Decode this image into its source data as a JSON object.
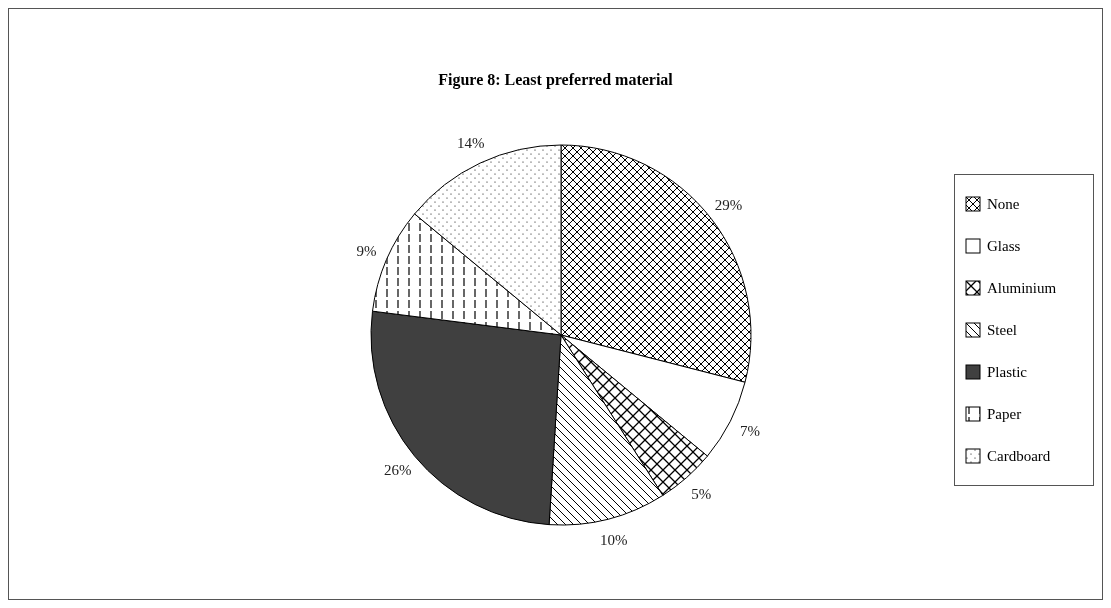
{
  "chart_data": {
    "type": "pie",
    "title": "Figure 8: Least preferred material",
    "categories": [
      "None",
      "Glass",
      "Aluminium",
      "Steel",
      "Plastic",
      "Paper",
      "Cardboard"
    ],
    "values": [
      29,
      7,
      5,
      10,
      26,
      9,
      14
    ],
    "value_labels": [
      "29%",
      "7%",
      "5%",
      "10%",
      "26%",
      "9%",
      "14%"
    ],
    "colors": [
      "#000000",
      "#ffffff",
      "#000000",
      "#000000",
      "#404040",
      "#000000",
      "#000000"
    ],
    "legend": "right"
  }
}
